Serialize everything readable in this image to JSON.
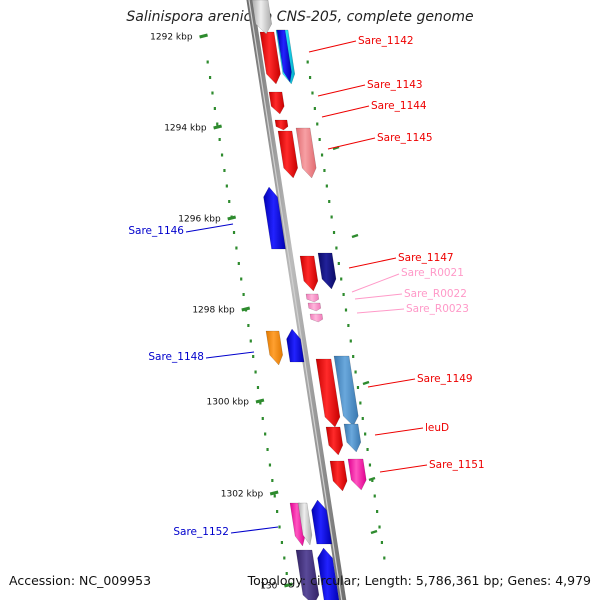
{
  "title": "Salinispora arenicola CNS-205, complete genome",
  "footer": {
    "accession": "Accession: NC_009953",
    "summary": "Topology: circular; Length: 5,786,361 bp; Genes: 4,979"
  },
  "ticks": [
    {
      "label": "1292 kbp"
    },
    {
      "label": "1294 kbp"
    },
    {
      "label": "1296 kbp"
    },
    {
      "label": "1298 kbp"
    },
    {
      "label": "1300 kbp"
    },
    {
      "label": "1302 kbp"
    },
    {
      "label": "130"
    }
  ],
  "genes": [
    {
      "name": "Sare_1142",
      "color": "#ee0000",
      "side": "right"
    },
    {
      "name": "Sare_1143",
      "color": "#ee0000",
      "side": "right"
    },
    {
      "name": "Sare_1144",
      "color": "#ee0000",
      "side": "right"
    },
    {
      "name": "Sare_1145",
      "color": "#ee0000",
      "side": "right"
    },
    {
      "name": "Sare_1146",
      "color": "#0000cc",
      "side": "left"
    },
    {
      "name": "Sare_1147",
      "color": "#ee0000",
      "side": "right"
    },
    {
      "name": "Sare_R0021",
      "color": "#ff99c8",
      "side": "right"
    },
    {
      "name": "Sare_R0022",
      "color": "#ff99c8",
      "side": "right"
    },
    {
      "name": "Sare_R0023",
      "color": "#ff99c8",
      "side": "right"
    },
    {
      "name": "Sare_1148",
      "color": "#0000cc",
      "side": "left"
    },
    {
      "name": "Sare_1149",
      "color": "#ee0000",
      "side": "right"
    },
    {
      "name": "leuD",
      "color": "#ee0000",
      "side": "right"
    },
    {
      "name": "Sare_1151",
      "color": "#ee0000",
      "side": "right"
    },
    {
      "name": "Sare_1152",
      "color": "#0000cc",
      "side": "left"
    }
  ],
  "colors": {
    "backbone": "#8a8a8a",
    "tick": "#2e8b2e",
    "forward": "#ee0000",
    "reverse": "#0000cc",
    "rna": "#ff99c8"
  }
}
